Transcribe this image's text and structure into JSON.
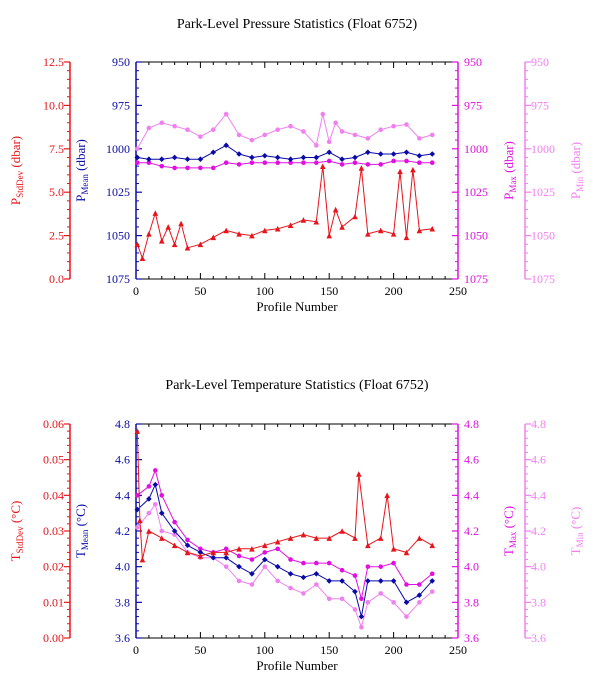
{
  "chart_data": [
    {
      "type": "line",
      "title": "Park-Level Pressure Statistics (Float 6752)",
      "xlabel": "Profile Number",
      "xlim": [
        0,
        250
      ],
      "x_ticks": [
        "0",
        "50",
        "100",
        "150",
        "200",
        "250"
      ],
      "axes": [
        {
          "id": "stddev",
          "side": "left-outer",
          "color": "#e8141b",
          "label": "P",
          "label_sub": "StdDev",
          "label_unit": " (dbar)",
          "ylim": [
            0,
            12.5
          ],
          "inverted": false,
          "ticks": [
            "0.0",
            "2.5",
            "5.0",
            "7.5",
            "10.0",
            "12.5"
          ]
        },
        {
          "id": "mean",
          "side": "left-inner",
          "color": "#0a0aa8",
          "label": "P",
          "label_sub": "Mean",
          "label_unit": " (dbar)",
          "ylim": [
            950,
            1075
          ],
          "inverted": true,
          "ticks": [
            "950",
            "975",
            "1000",
            "1025",
            "1050",
            "1075"
          ]
        },
        {
          "id": "max",
          "side": "right-inner",
          "color": "#e010e0",
          "label": "P",
          "label_sub": "Max",
          "label_unit": " (dbar)",
          "ylim": [
            950,
            1075
          ],
          "inverted": true,
          "ticks": [
            "950",
            "975",
            "1000",
            "1025",
            "1050",
            "1075"
          ]
        },
        {
          "id": "min",
          "side": "right-outer",
          "color": "#f080f0",
          "label": "P",
          "label_sub": "Min",
          "label_unit": " (dbar)",
          "ylim": [
            950,
            1075
          ],
          "inverted": true,
          "ticks": [
            "950",
            "975",
            "1000",
            "1025",
            "1050",
            "1075"
          ]
        }
      ],
      "series": [
        {
          "axis": "min",
          "color": "#f080f0",
          "marker": "circle",
          "x": [
            1,
            10,
            20,
            30,
            40,
            50,
            60,
            70,
            80,
            90,
            100,
            110,
            120,
            130,
            140,
            145,
            150,
            155,
            160,
            170,
            180,
            190,
            200,
            210,
            220,
            230
          ],
          "y": [
            1000,
            988,
            985,
            987,
            989,
            993,
            989,
            980,
            992,
            995,
            992,
            989,
            987,
            990,
            998,
            980,
            996,
            985,
            990,
            992,
            994,
            989,
            987,
            986,
            994,
            992
          ]
        },
        {
          "axis": "max",
          "color": "#e010e0",
          "marker": "circle",
          "x": [
            1,
            10,
            20,
            30,
            40,
            50,
            60,
            70,
            80,
            90,
            100,
            110,
            120,
            130,
            140,
            150,
            160,
            170,
            180,
            190,
            200,
            210,
            220,
            230
          ],
          "y": [
            1008,
            1008,
            1010,
            1011,
            1011,
            1011,
            1011,
            1008,
            1009,
            1008,
            1008,
            1008,
            1008,
            1008,
            1008,
            1007,
            1009,
            1008,
            1009,
            1009,
            1007,
            1007,
            1008,
            1008
          ]
        },
        {
          "axis": "mean",
          "color": "#0a0aa8",
          "marker": "diamond",
          "x": [
            1,
            10,
            20,
            30,
            40,
            50,
            60,
            70,
            80,
            90,
            100,
            110,
            120,
            130,
            140,
            150,
            160,
            170,
            180,
            190,
            200,
            210,
            220,
            230
          ],
          "y": [
            1005,
            1006,
            1006,
            1005,
            1006,
            1006,
            1002,
            998,
            1003,
            1005,
            1004,
            1005,
            1006,
            1005,
            1005,
            1002,
            1006,
            1005,
            1002,
            1003,
            1003,
            1002,
            1004,
            1003
          ]
        },
        {
          "axis": "stddev",
          "color": "#e8141b",
          "marker": "triangle",
          "x": [
            1,
            5,
            10,
            15,
            20,
            25,
            30,
            35,
            40,
            50,
            60,
            70,
            80,
            90,
            100,
            110,
            120,
            130,
            140,
            145,
            150,
            155,
            160,
            170,
            175,
            180,
            190,
            200,
            205,
            210,
            215,
            220,
            230
          ],
          "y": [
            2.0,
            1.2,
            2.6,
            3.8,
            2.2,
            3.0,
            2.0,
            3.2,
            1.8,
            2.0,
            2.4,
            2.8,
            2.6,
            2.5,
            2.8,
            2.9,
            3.1,
            3.4,
            3.3,
            6.5,
            2.5,
            4.0,
            3.0,
            3.6,
            6.4,
            2.6,
            2.8,
            2.6,
            6.2,
            2.4,
            6.3,
            2.8,
            2.9
          ]
        }
      ]
    },
    {
      "type": "line",
      "title": "Park-Level Temperature Statistics (Float 6752)",
      "xlabel": "Profile Number",
      "xlim": [
        0,
        250
      ],
      "x_ticks": [
        "0",
        "50",
        "100",
        "150",
        "200",
        "250"
      ],
      "axes": [
        {
          "id": "stddev",
          "side": "left-outer",
          "color": "#e8141b",
          "label": "T",
          "label_sub": "StdDev",
          "label_unit": " (°C)",
          "ylim": [
            0,
            0.06
          ],
          "inverted": false,
          "ticks": [
            "0.00",
            "0.01",
            "0.02",
            "0.03",
            "0.04",
            "0.05",
            "0.06"
          ]
        },
        {
          "id": "mean",
          "side": "left-inner",
          "color": "#0a0aa8",
          "label": "T",
          "label_sub": "Mean",
          "label_unit": " (°C)",
          "ylim": [
            3.6,
            4.8
          ],
          "inverted": false,
          "ticks": [
            "3.6",
            "3.8",
            "4.0",
            "4.2",
            "4.4",
            "4.6",
            "4.8"
          ]
        },
        {
          "id": "max",
          "side": "right-inner",
          "color": "#e010e0",
          "label": "T",
          "label_sub": "Max",
          "label_unit": " (°C)",
          "ylim": [
            3.6,
            4.8
          ],
          "inverted": false,
          "ticks": [
            "3.6",
            "3.8",
            "4.0",
            "4.2",
            "4.4",
            "4.6",
            "4.8"
          ]
        },
        {
          "id": "min",
          "side": "right-outer",
          "color": "#f080f0",
          "label": "T",
          "label_sub": "Min",
          "label_unit": " (°C)",
          "ylim": [
            3.6,
            4.8
          ],
          "inverted": false,
          "ticks": [
            "3.6",
            "3.8",
            "4.0",
            "4.2",
            "4.4",
            "4.6",
            "4.8"
          ]
        }
      ],
      "series": [
        {
          "axis": "min",
          "color": "#f080f0",
          "marker": "circle",
          "x": [
            1,
            10,
            15,
            20,
            30,
            40,
            50,
            60,
            70,
            80,
            90,
            100,
            110,
            120,
            130,
            140,
            150,
            160,
            170,
            175,
            180,
            190,
            200,
            210,
            220,
            230
          ],
          "y": [
            4.22,
            4.3,
            4.35,
            4.2,
            4.18,
            4.08,
            4.05,
            4.05,
            4.0,
            3.92,
            3.9,
            4.0,
            3.92,
            3.88,
            3.85,
            3.9,
            3.82,
            3.82,
            3.76,
            3.66,
            3.8,
            3.85,
            3.8,
            3.72,
            3.8,
            3.86
          ]
        },
        {
          "axis": "max",
          "color": "#e010e0",
          "marker": "circle",
          "x": [
            1,
            10,
            15,
            20,
            30,
            40,
            50,
            60,
            70,
            80,
            90,
            100,
            110,
            120,
            130,
            140,
            150,
            160,
            170,
            175,
            180,
            190,
            200,
            210,
            220,
            230
          ],
          "y": [
            4.4,
            4.45,
            4.54,
            4.4,
            4.25,
            4.15,
            4.1,
            4.08,
            4.1,
            4.06,
            4.04,
            4.08,
            4.1,
            4.04,
            4.02,
            4.02,
            4.02,
            3.98,
            3.95,
            3.82,
            4.0,
            4.0,
            4.02,
            3.9,
            3.9,
            3.96
          ]
        },
        {
          "axis": "mean",
          "color": "#0a0aa8",
          "marker": "diamond",
          "x": [
            1,
            10,
            15,
            20,
            30,
            40,
            50,
            60,
            70,
            80,
            90,
            100,
            110,
            120,
            130,
            140,
            150,
            160,
            170,
            175,
            180,
            190,
            200,
            210,
            220,
            230
          ],
          "y": [
            4.32,
            4.38,
            4.46,
            4.3,
            4.2,
            4.12,
            4.08,
            4.05,
            4.05,
            4.0,
            3.96,
            4.04,
            4.0,
            3.96,
            3.94,
            3.96,
            3.92,
            3.92,
            3.86,
            3.72,
            3.92,
            3.92,
            3.92,
            3.8,
            3.84,
            3.92
          ]
        },
        {
          "axis": "stddev",
          "color": "#e8141b",
          "marker": "triangle",
          "x": [
            1,
            3,
            5,
            10,
            20,
            30,
            40,
            50,
            60,
            70,
            80,
            90,
            100,
            110,
            120,
            130,
            140,
            150,
            160,
            170,
            173,
            180,
            190,
            195,
            200,
            210,
            220,
            230
          ],
          "y": [
            0.058,
            0.033,
            0.022,
            0.03,
            0.028,
            0.026,
            0.024,
            0.023,
            0.024,
            0.024,
            0.025,
            0.025,
            0.026,
            0.027,
            0.028,
            0.029,
            0.028,
            0.028,
            0.03,
            0.028,
            0.046,
            0.026,
            0.028,
            0.04,
            0.025,
            0.024,
            0.028,
            0.026
          ]
        }
      ]
    }
  ]
}
